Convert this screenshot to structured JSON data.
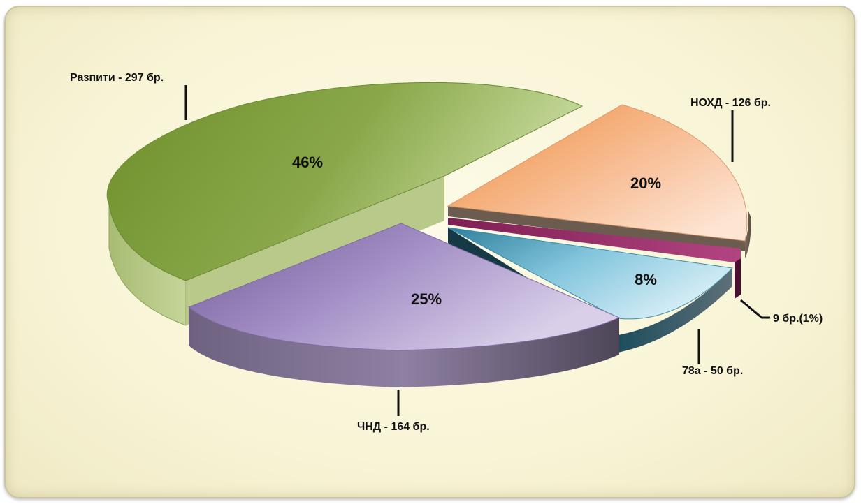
{
  "chart_data": {
    "type": "pie",
    "style": "3d-exploded",
    "slices": [
      {
        "label": "Разпити - 297 бр.",
        "value": 297,
        "pct_label": "46%",
        "color": "#7f9f3f"
      },
      {
        "label": "НОХД - 126 бр.",
        "value": 126,
        "pct_label": "20%",
        "color": "#f4a76c"
      },
      {
        "label": "9 бр.(1%)",
        "value": 9,
        "pct_label": "",
        "color": "#a0306a"
      },
      {
        "label": "78а - 50 бр.",
        "value": 50,
        "pct_label": "8%",
        "color": "#6cbcd6"
      },
      {
        "label": "ЧНД - 164 бр.",
        "value": 164,
        "pct_label": "25%",
        "color": "#9b86bd"
      }
    ]
  }
}
